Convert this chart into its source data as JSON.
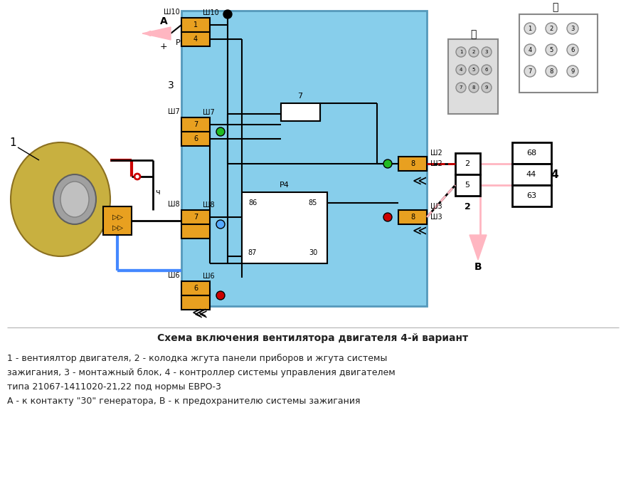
{
  "bg_color": "#ffffff",
  "fig_width": 8.8,
  "fig_height": 6.7,
  "title": "Схема включения вентилятора двигателя 4-й вариант",
  "caption_line1": "1 - вентиялтор двигателя, 2 - колодка жгута панели приборов и жгута системы",
  "caption_line2": "зажигания, 3 - монтажный блок, 4 - контроллер системы управления двигателем",
  "caption_line3": "типа 21067-1411020-21,22 под нормы ЕВРО-3",
  "caption_line4": "А - к контакту \"30\" генератора, В - к предохранителю системы зажигания",
  "main_box_color": "#87CEEB",
  "connector_color": "#E8A020",
  "wire_black": "#000000",
  "wire_blue": "#4488FF",
  "wire_pink": "#FFB6C1",
  "wire_red": "#CC0000"
}
